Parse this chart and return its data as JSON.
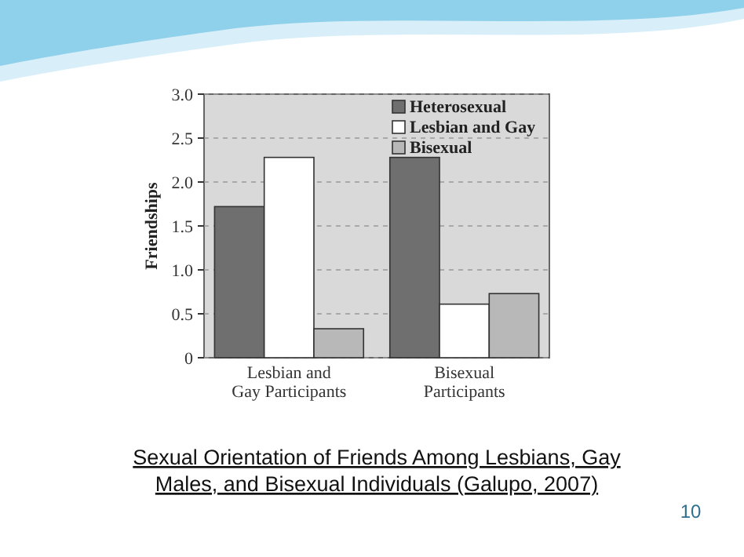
{
  "chart_data": {
    "type": "bar",
    "ylabel": "Friendships",
    "categories": [
      "Lesbian and\nGay Participants",
      "Bisexual\nParticipants"
    ],
    "series": [
      {
        "name": "Heterosexual",
        "color": "#6f6f6f",
        "values": [
          1.72,
          2.28
        ]
      },
      {
        "name": "Lesbian and Gay",
        "color": "#ffffff",
        "values": [
          2.28,
          0.61
        ]
      },
      {
        "name": "Bisexual",
        "color": "#b8b8b8",
        "values": [
          0.33,
          0.73
        ]
      }
    ],
    "ylim": [
      0,
      3
    ],
    "yticks": [
      {
        "value": 0,
        "label": "0"
      },
      0.5,
      {
        "value": 1,
        "label": "1.0"
      },
      1.5,
      {
        "value": 2,
        "label": "2.0"
      },
      2.5,
      {
        "value": 3,
        "label": "3.0"
      }
    ],
    "grid": "y",
    "legend": "top right",
    "annotations": [
      "Sexual Orientation of Friends Among Lesbians, Gay\nMales, and Bisexual Individuals (Galupo, 2007)",
      "10"
    ]
  }
}
